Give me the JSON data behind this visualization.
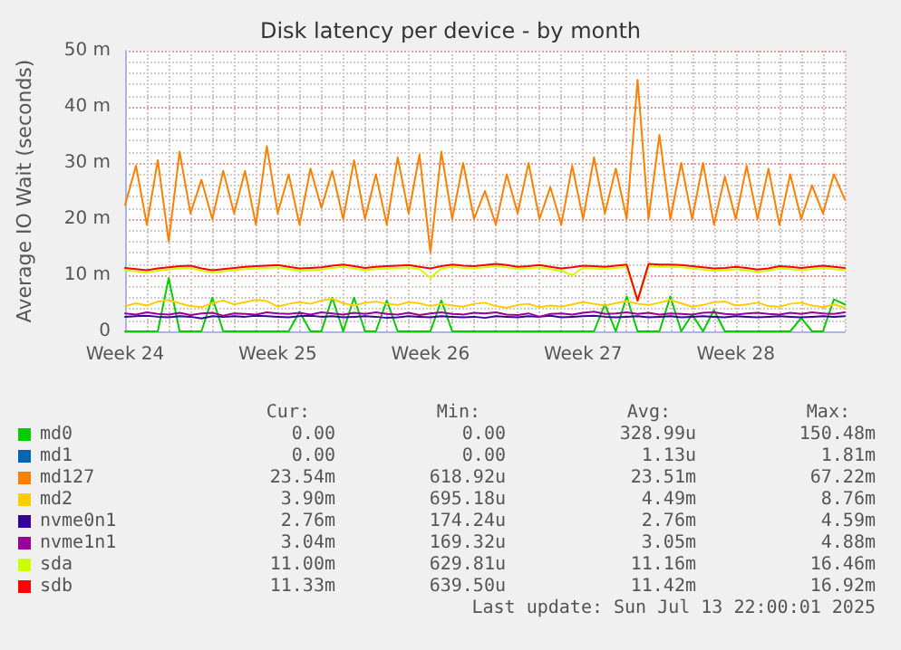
{
  "chart_data": {
    "type": "line",
    "title": "Disk latency per device - by month",
    "ylabel": "Average IO Wait (seconds)",
    "categories": [
      "Week 24",
      null,
      null,
      null,
      null,
      null,
      null,
      null,
      null,
      null,
      null,
      null,
      null,
      null,
      "Week 25",
      null,
      null,
      null,
      null,
      null,
      null,
      null,
      null,
      null,
      null,
      null,
      null,
      null,
      "Week 26",
      null,
      null,
      null,
      null,
      null,
      null,
      null,
      null,
      null,
      null,
      null,
      null,
      null,
      "Week 27",
      null,
      null,
      null,
      null,
      null,
      null,
      null,
      null,
      null,
      null,
      null,
      null,
      null,
      "Week 28",
      null,
      null,
      null,
      null,
      null,
      null,
      null,
      null,
      null,
      null
    ],
    "ylim": [
      0,
      50
    ],
    "yticks": [
      {
        "value": 0,
        "label": "0"
      },
      {
        "value": 10,
        "label": "10 m"
      },
      {
        "value": 20,
        "label": "20 m"
      },
      {
        "value": 30,
        "label": "30 m"
      },
      {
        "value": 40,
        "label": "40 m"
      },
      {
        "value": 50,
        "label": "50 m"
      }
    ],
    "grid": true,
    "legend": "bottom",
    "marker": "none",
    "line_style": "solid",
    "series": [
      {
        "name": "md0",
        "color": "#00cc00",
        "values": [
          0,
          0,
          0,
          0,
          9.5,
          0,
          0,
          0,
          6,
          0,
          0,
          0,
          0,
          0,
          0,
          0,
          3.5,
          0,
          0,
          6,
          0,
          6,
          0,
          0,
          5.5,
          0,
          0,
          0,
          0,
          5.5,
          0,
          0,
          0,
          0,
          0,
          0,
          0,
          0,
          0,
          0,
          0,
          0,
          0,
          0,
          4.8,
          0,
          6.2,
          0,
          0,
          0,
          6.2,
          0,
          3,
          0,
          3.8,
          0,
          0,
          0,
          0,
          0,
          0,
          0,
          2.4,
          0,
          0,
          5.7,
          4.8
        ]
      },
      {
        "name": "md1",
        "color": "#0066b3",
        "values": [
          null,
          null,
          null,
          null,
          null,
          null,
          null,
          null,
          null,
          null,
          null,
          null,
          null,
          null,
          null,
          null,
          null,
          null,
          null,
          null,
          null,
          null,
          null,
          null,
          null,
          null,
          null,
          null,
          null,
          null,
          null,
          null,
          null,
          null,
          null,
          null,
          null,
          null,
          null,
          null,
          null,
          null,
          null,
          null,
          null,
          null,
          null,
          null,
          null,
          null,
          null,
          null,
          null,
          null,
          null,
          null,
          null,
          null,
          null,
          null,
          null,
          null,
          null,
          null,
          null,
          null,
          null
        ]
      },
      {
        "name": "md127",
        "color": "#ff8000",
        "values": [
          22.5,
          29.5,
          19,
          30.5,
          16,
          32,
          21,
          27,
          20,
          28.6,
          21,
          28.6,
          19,
          33,
          21,
          28,
          19,
          29,
          22,
          28.6,
          20,
          30.5,
          20,
          28,
          19,
          31,
          21,
          31.5,
          14,
          32,
          20,
          30,
          20,
          25,
          19,
          28,
          21,
          30,
          20,
          25.7,
          19,
          29.5,
          20,
          31,
          21,
          29,
          20,
          44.8,
          20,
          35,
          20,
          30,
          20,
          30,
          19,
          27.6,
          20,
          29.5,
          20,
          29,
          19,
          28,
          20,
          26,
          21,
          28,
          23.5
        ]
      },
      {
        "name": "md2",
        "color": "#ffcc00",
        "values": [
          4.5,
          5.0,
          4.6,
          5.3,
          5.6,
          5.0,
          4.5,
          4.3,
          5.0,
          5.5,
          4.8,
          5.2,
          5.6,
          5.4,
          4.4,
          4.9,
          5.2,
          4.9,
          5.5,
          5.8,
          5.0,
          4.6,
          5.1,
          5.3,
          4.9,
          4.7,
          5.2,
          5.0,
          4.5,
          4.9,
          4.6,
          4.4,
          4.9,
          5.1,
          4.5,
          4.2,
          4.7,
          4.9,
          4.3,
          4.6,
          4.4,
          4.8,
          5.2,
          4.9,
          4.6,
          5.0,
          5.4,
          4.9,
          4.7,
          5.1,
          5.6,
          5.0,
          4.4,
          4.7,
          5.2,
          5.3,
          4.6,
          4.8,
          5.1,
          4.5,
          4.4,
          4.9,
          5.1,
          4.6,
          4.3,
          4.8,
          4.2
        ]
      },
      {
        "name": "nvme0n1",
        "color": "#330099",
        "values": [
          2.6,
          2.7,
          2.8,
          2.6,
          2.5,
          2.7,
          2.6,
          2.3,
          2.7,
          2.6,
          2.7,
          2.6,
          2.8,
          2.7,
          2.6,
          2.5,
          2.7,
          2.8,
          2.6,
          2.7,
          2.5,
          2.6,
          2.7,
          2.6,
          2.4,
          2.5,
          2.7,
          2.6,
          2.5,
          2.7,
          2.6,
          2.5,
          2.6,
          2.4,
          2.7,
          2.6,
          2.5,
          2.7,
          2.6,
          2.8,
          2.5,
          2.6,
          2.7,
          2.8,
          2.6,
          2.5,
          2.6,
          2.7,
          2.5,
          2.6,
          2.7,
          2.5,
          2.6,
          2.7,
          2.6,
          2.5,
          2.7,
          2.6,
          2.5,
          2.6,
          2.7,
          2.6,
          2.5,
          2.6,
          2.7,
          2.6,
          2.7
        ]
      },
      {
        "name": "nvme1n1",
        "color": "#990099",
        "values": [
          3.2,
          3.0,
          3.4,
          3.1,
          3.0,
          3.3,
          2.9,
          3.2,
          3.3,
          2.8,
          3.2,
          3.1,
          3.0,
          3.4,
          3.2,
          3.1,
          3.3,
          3.0,
          3.4,
          3.2,
          3.0,
          3.3,
          3.1,
          3.4,
          3.1,
          3.0,
          3.3,
          2.9,
          3.2,
          3.4,
          3.1,
          3.0,
          3.3,
          3.2,
          3.4,
          3.0,
          2.9,
          3.2,
          2.6,
          3.1,
          3.2,
          3.0,
          3.3,
          3.5,
          3.1,
          3.2,
          3.4,
          3.1,
          3.3,
          3.0,
          3.2,
          3.1,
          3.0,
          3.3,
          3.4,
          3.1,
          3.0,
          3.2,
          3.3,
          3.1,
          3.0,
          3.3,
          3.1,
          3.4,
          3.2,
          3.1,
          3.4
        ]
      },
      {
        "name": "sda",
        "color": "#ccff00",
        "values": [
          10.9,
          10.7,
          10.5,
          10.8,
          11.0,
          11.2,
          11.3,
          10.8,
          10.5,
          10.7,
          10.9,
          11.1,
          11.2,
          11.3,
          11.4,
          11.1,
          10.8,
          10.9,
          11.0,
          11.3,
          11.5,
          11.2,
          10.9,
          11.1,
          11.2,
          11.3,
          11.4,
          11.1,
          9.5,
          11.2,
          11.5,
          11.3,
          11.2,
          11.4,
          11.6,
          11.4,
          11.1,
          11.2,
          11.4,
          11.1,
          10.8,
          10.0,
          11.3,
          11.2,
          11.1,
          11.3,
          11.5,
          5.3,
          11.6,
          11.5,
          11.5,
          11.4,
          11.2,
          11.0,
          10.8,
          10.9,
          11.1,
          10.9,
          10.6,
          10.8,
          11.2,
          11.1,
          10.9,
          11.1,
          11.3,
          11.1,
          10.9
        ]
      },
      {
        "name": "sdb",
        "color": "#ff0000",
        "values": [
          11.3,
          11.1,
          10.9,
          11.2,
          11.4,
          11.6,
          11.7,
          11.2,
          10.9,
          11.1,
          11.3,
          11.5,
          11.6,
          11.7,
          11.8,
          11.5,
          11.2,
          11.3,
          11.4,
          11.7,
          11.9,
          11.6,
          11.3,
          11.5,
          11.6,
          11.7,
          11.8,
          11.5,
          11.2,
          11.6,
          11.9,
          11.7,
          11.6,
          11.8,
          12.0,
          11.8,
          11.5,
          11.6,
          11.8,
          11.5,
          11.2,
          11.4,
          11.7,
          11.6,
          11.5,
          11.7,
          11.9,
          5.5,
          12.0,
          11.9,
          11.9,
          11.8,
          11.6,
          11.4,
          11.2,
          11.3,
          11.5,
          11.3,
          11.0,
          11.2,
          11.6,
          11.5,
          11.3,
          11.5,
          11.7,
          11.5,
          11.3
        ]
      }
    ],
    "annotations": [
      "Cur:",
      "Min:",
      "Avg:",
      "Max:",
      "0.00",
      "0.00",
      "328.99u",
      "150.48m",
      "0.00",
      "0.00",
      "1.13u",
      "1.81m",
      "23.54m",
      "618.92u",
      "23.51m",
      "67.22m",
      "3.90m",
      "695.18u",
      "4.49m",
      "8.76m",
      "2.76m",
      "174.24u",
      "2.76m",
      "4.59m",
      "3.04m",
      "169.32u",
      "3.05m",
      "4.88m",
      "11.00m",
      "629.81u",
      "11.16m",
      "16.46m",
      "11.33m",
      "639.50u",
      "11.42m",
      "16.92m",
      "Last update: Sun Jul 13 22:00:01 2025"
    ]
  }
}
